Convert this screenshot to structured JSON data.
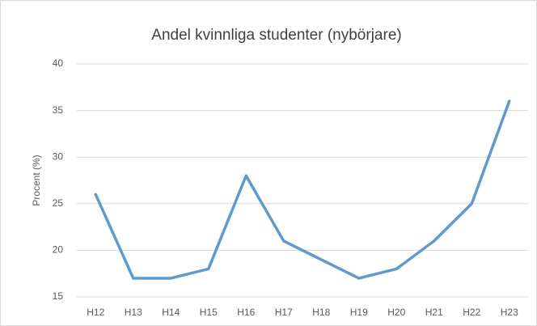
{
  "chart_data": {
    "type": "line",
    "title": "Andel kvinnliga studenter (nybörjare)",
    "y_label": "Procent (%)",
    "categories": [
      "H12",
      "H13",
      "H14",
      "H15",
      "H16",
      "H17",
      "H18",
      "H19",
      "H20",
      "H21",
      "H22",
      "H23"
    ],
    "values": [
      26,
      17,
      17,
      18,
      28,
      21,
      19,
      17,
      18,
      21,
      25,
      36
    ],
    "color": "#5b9bd5",
    "ylim": [
      15,
      40
    ],
    "yticks": [
      15,
      20,
      25,
      30,
      35,
      40
    ],
    "grid": true
  }
}
